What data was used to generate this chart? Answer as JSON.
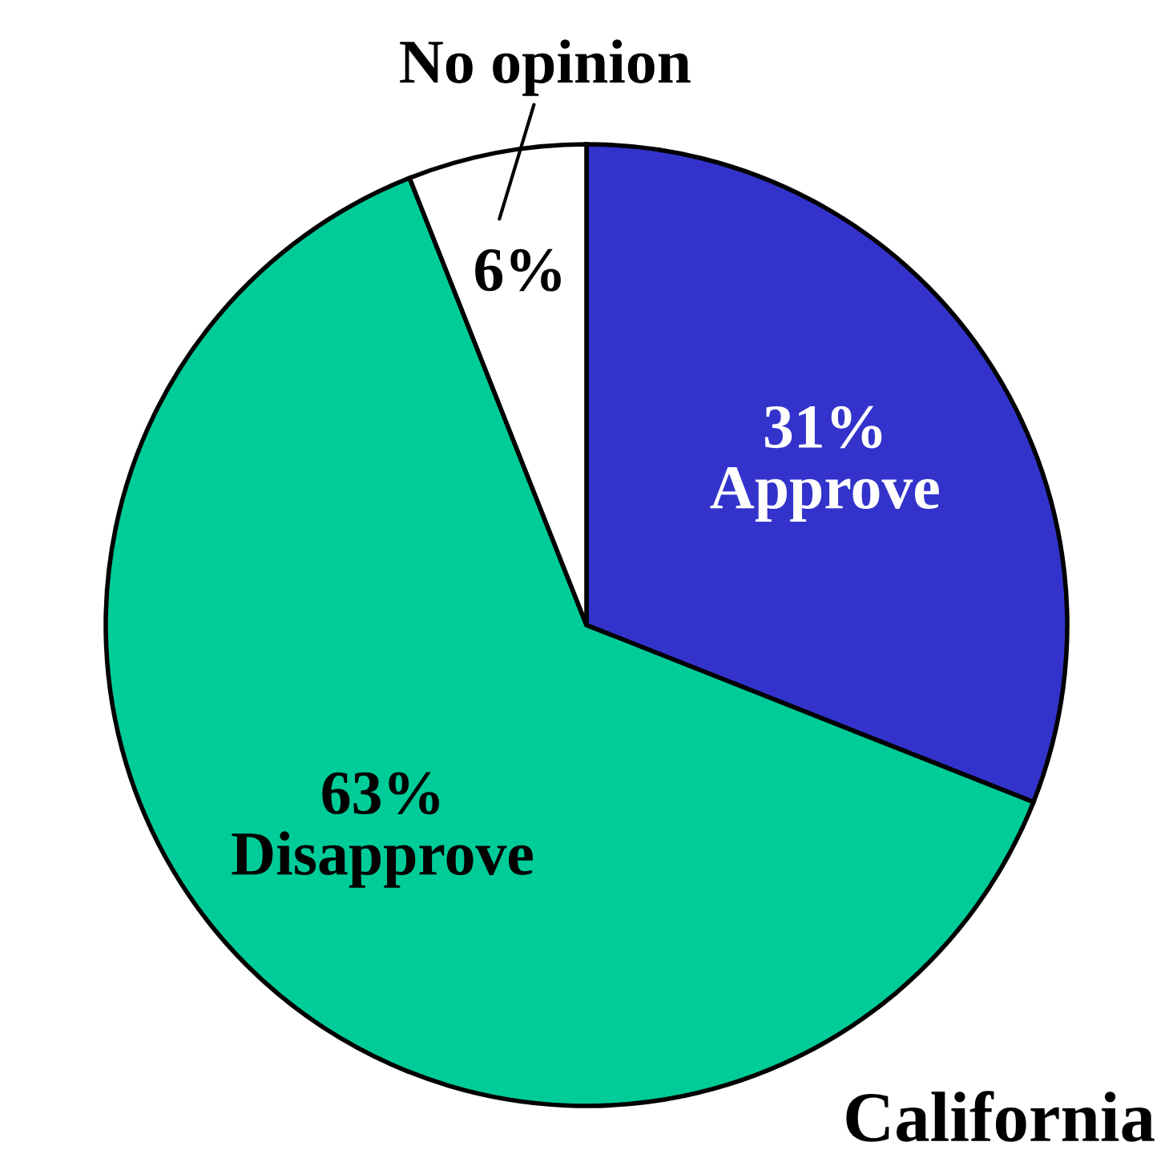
{
  "chart_data": {
    "type": "pie",
    "title": "California",
    "categories": [
      "Approve",
      "Disapprove",
      "No opinion"
    ],
    "values": [
      31,
      63,
      6
    ],
    "colors": [
      "#3333cc",
      "#00cc99",
      "#ffffff"
    ],
    "value_labels": [
      "31%",
      "63%",
      "6%"
    ]
  }
}
